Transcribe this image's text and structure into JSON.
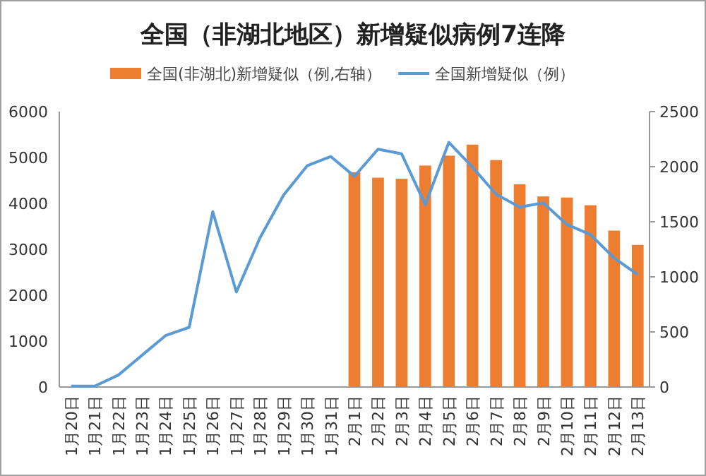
{
  "chart_data": {
    "type": "bar",
    "title": "全国（非湖北地区）新增疑似病例7连降",
    "categories": [
      "1月20日",
      "1月21日",
      "1月22日",
      "1月23日",
      "1月24日",
      "1月25日",
      "1月26日",
      "1月27日",
      "1月28日",
      "1月29日",
      "1月30日",
      "1月31日",
      "2月1日",
      "2月2日",
      "2月3日",
      "2月4日",
      "2月5日",
      "2月6日",
      "2月7日",
      "2月8日",
      "2月9日",
      "2月10日",
      "2月11日",
      "2月12日",
      "2月13日"
    ],
    "series": [
      {
        "name": "全国(非湖北)新增疑似（例,右轴）",
        "axis": "y2",
        "color": "#ed7d31",
        "values": [
          null,
          null,
          null,
          null,
          null,
          null,
          null,
          null,
          null,
          null,
          null,
          null,
          1950,
          1900,
          1890,
          2010,
          2100,
          2200,
          2060,
          1840,
          1730,
          1720,
          1650,
          1420,
          1290
        ]
      },
      {
        "name": "全国新增疑似（例）",
        "type": "line",
        "color": "#5b9bd5",
        "values": [
          20,
          20,
          260,
          690,
          1120,
          1300,
          3820,
          2070,
          3250,
          4180,
          4820,
          5020,
          4590,
          5180,
          5080,
          3970,
          5330,
          4790,
          4200,
          3920,
          4010,
          3540,
          3320,
          2810,
          2450
        ]
      }
    ],
    "ylim": [
      0,
      6000
    ],
    "yticks": [
      0,
      1000,
      2000,
      3000,
      4000,
      5000,
      6000
    ],
    "y2lim": [
      0,
      2500
    ],
    "y2ticks": [
      0,
      500,
      1000,
      1500,
      2000,
      2500
    ],
    "legend": "top"
  }
}
